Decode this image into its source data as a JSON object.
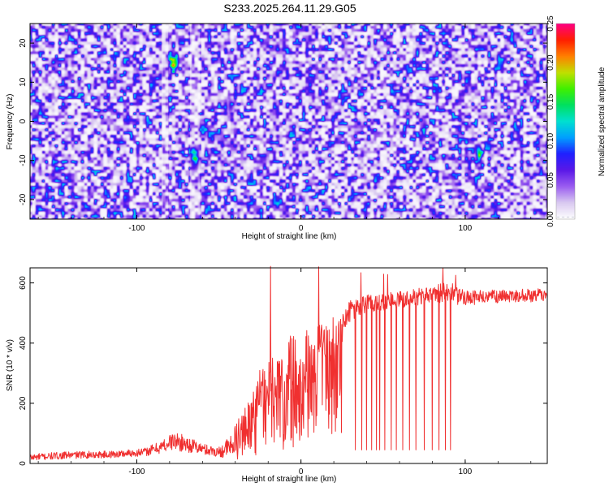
{
  "title": "S233.2025.264.11.29.G05",
  "chart_data": [
    {
      "type": "heatmap",
      "xlabel": "Height of straight line (km)",
      "ylabel": "Frequency (Hz)",
      "xlim": [
        -165,
        150
      ],
      "ylim": [
        -25,
        25
      ],
      "x_ticks": [
        -100,
        0,
        100
      ],
      "y_ticks": [
        -20,
        -10,
        0,
        10,
        20
      ],
      "x_tick_labels": [
        "-100",
        "0",
        "100"
      ],
      "y_tick_labels": [
        "-20",
        "-10",
        "0",
        "10",
        "20"
      ],
      "colorbar": {
        "label": "Normalized spectral amplitude",
        "range": [
          0,
          0.25
        ],
        "ticks": [
          0,
          0.05,
          0.1,
          0.15,
          0.2,
          0.25
        ],
        "tick_labels": [
          "0.00",
          "0.05",
          "0.10",
          "0.15",
          "0.20",
          "0.25"
        ],
        "colors": [
          "#ffffff",
          "#d8c8f0",
          "#9a5cf0",
          "#5a18e8",
          "#2020ff",
          "#00a0ff",
          "#00e0d0",
          "#00e060",
          "#40f000",
          "#c0e000",
          "#ff8000",
          "#ff2000",
          "#ff0080"
        ]
      },
      "notes": "Speckled noise field dominated by 0.02-0.06 amplitudes with sparse peaks up to ~0.22 near x=-78 km, y=15 Hz"
    },
    {
      "type": "line",
      "xlabel": "Height of straight line (km)",
      "ylabel": "SNR (10 * v/v)",
      "xlim": [
        -165,
        150
      ],
      "ylim": [
        0,
        650
      ],
      "x_ticks": [
        -100,
        0,
        100
      ],
      "y_ticks": [
        0,
        200,
        400,
        600
      ],
      "x_tick_labels": [
        "-100",
        "0",
        "100"
      ],
      "y_tick_labels": [
        "0",
        "200",
        "400",
        "600"
      ],
      "series": [
        {
          "name": "SNR",
          "color": "#f03030",
          "x": [
            -165,
            -140,
            -115,
            -95,
            -85,
            -78,
            -70,
            -60,
            -50,
            -42,
            -35,
            -28,
            -20,
            -12,
            -5,
            0,
            5,
            12,
            20,
            25,
            30,
            40,
            60,
            80,
            90,
            95,
            100,
            120,
            150
          ],
          "y": [
            20,
            28,
            30,
            38,
            55,
            75,
            65,
            48,
            38,
            60,
            120,
            200,
            250,
            290,
            320,
            330,
            350,
            380,
            400,
            440,
            510,
            530,
            545,
            560,
            575,
            555,
            550,
            555,
            560
          ],
          "noise": [
            12,
            12,
            12,
            14,
            22,
            30,
            28,
            18,
            18,
            40,
            70,
            90,
            100,
            110,
            110,
            110,
            100,
            90,
            90,
            50,
            35,
            30,
            30,
            30,
            35,
            30,
            25,
            22,
            22
          ]
        }
      ],
      "dropouts_x": [
        33,
        37,
        40,
        43,
        46,
        48,
        51,
        55,
        58,
        62,
        66,
        70,
        75,
        80,
        84,
        88,
        91
      ],
      "dropout_floor": 45
    }
  ]
}
